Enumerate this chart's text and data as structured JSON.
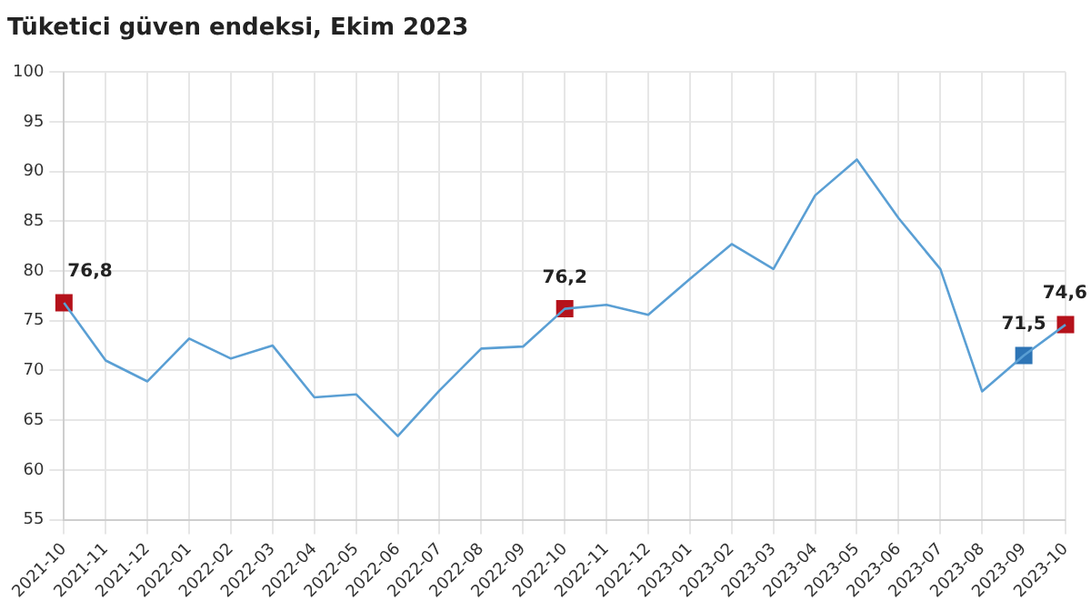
{
  "chart_data": {
    "type": "line",
    "title": "Tüketici güven endeksi, Ekim 2023",
    "categories": [
      "2021-10",
      "2021-11",
      "2021-12",
      "2022-01",
      "2022-02",
      "2022-03",
      "2022-04",
      "2022-05",
      "2022-06",
      "2022-07",
      "2022-08",
      "2022-09",
      "2022-10",
      "2022-11",
      "2022-12",
      "2023-01",
      "2023-02",
      "2023-03",
      "2023-04",
      "2023-05",
      "2023-06",
      "2023-07",
      "2023-08",
      "2023-09",
      "2023-10"
    ],
    "series": [
      {
        "color": "#5a9fd4",
        "marker": "none",
        "values": [
          76.8,
          71.0,
          68.9,
          73.2,
          71.2,
          72.5,
          67.3,
          67.6,
          63.4,
          68.0,
          72.2,
          72.4,
          76.2,
          76.6,
          75.6,
          79.2,
          82.7,
          80.2,
          87.6,
          91.2,
          85.3,
          80.2,
          67.9,
          71.5,
          74.6
        ]
      },
      {
        "type": "scatter",
        "marker": "square",
        "values": [
          76.8,
          null,
          null,
          null,
          null,
          null,
          null,
          null,
          null,
          null,
          null,
          null,
          76.2,
          null,
          null,
          null,
          null,
          null,
          null,
          null,
          null,
          null,
          null,
          71.5,
          74.6
        ],
        "colors": [
          "#b5121b",
          null,
          null,
          null,
          null,
          null,
          null,
          null,
          null,
          null,
          null,
          null,
          "#b5121b",
          null,
          null,
          null,
          null,
          null,
          null,
          null,
          null,
          null,
          null,
          "#2e75b6",
          "#b5121b"
        ],
        "value_labels": [
          "76,8",
          null,
          null,
          null,
          null,
          null,
          null,
          null,
          null,
          null,
          null,
          null,
          "76,2",
          null,
          null,
          null,
          null,
          null,
          null,
          null,
          null,
          null,
          null,
          "71,5",
          "74,6"
        ]
      }
    ],
    "ylim": [
      55,
      100
    ],
    "yticks": [
      55,
      60,
      65,
      70,
      75,
      80,
      85,
      90,
      95,
      100
    ],
    "grid": true,
    "legend": false,
    "line_style": "solid"
  }
}
